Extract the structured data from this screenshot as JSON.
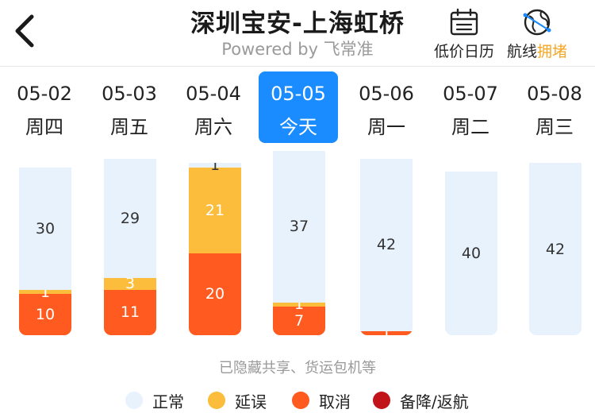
{
  "header": {
    "title": "深圳宝安-上海虹桥",
    "subtitle": "Powered by 飞常准",
    "calendar_label": "低价日历",
    "route_label_prefix": "航线",
    "route_label_status": "拥堵"
  },
  "days": [
    {
      "date": "05-02",
      "weekday": "周四",
      "selected": false
    },
    {
      "date": "05-03",
      "weekday": "周五",
      "selected": false
    },
    {
      "date": "05-04",
      "weekday": "周六",
      "selected": false
    },
    {
      "date": "05-05",
      "weekday": "今天",
      "selected": true
    },
    {
      "date": "05-06",
      "weekday": "周一",
      "selected": false
    },
    {
      "date": "05-07",
      "weekday": "周二",
      "selected": false
    },
    {
      "date": "05-08",
      "weekday": "周三",
      "selected": false
    }
  ],
  "chart_data": {
    "type": "bar",
    "stacked": true,
    "categories": [
      "05-02",
      "05-03",
      "05-04",
      "05-05",
      "05-06",
      "05-07",
      "05-08"
    ],
    "series": [
      {
        "name": "取消",
        "color": "#ff5a1f",
        "values": [
          10,
          11,
          20,
          7,
          1,
          0,
          0
        ]
      },
      {
        "name": "延误",
        "color": "#fbbd3b",
        "values": [
          1,
          3,
          21,
          1,
          0,
          0,
          0
        ]
      },
      {
        "name": "正常",
        "color": "#e8f2fd",
        "values": [
          30,
          29,
          1,
          37,
          42,
          40,
          42
        ]
      },
      {
        "name": "备降/返航",
        "color": "#c0141a",
        "values": [
          0,
          0,
          0,
          0,
          0,
          0,
          0
        ]
      }
    ]
  },
  "note": "已隐藏共享、货运包机等",
  "legend": [
    {
      "label": "正常",
      "color": "#e8f2fd"
    },
    {
      "label": "延误",
      "color": "#fbbd3b"
    },
    {
      "label": "取消",
      "color": "#ff5a1f"
    },
    {
      "label": "备降/返航",
      "color": "#c0141a"
    }
  ],
  "colors": {
    "accent": "#1a8cff",
    "highlight": "#f5a623"
  },
  "icons": {
    "back": "back-arrow-icon",
    "calendar": "calendar-icon",
    "route": "globe-route-icon"
  }
}
